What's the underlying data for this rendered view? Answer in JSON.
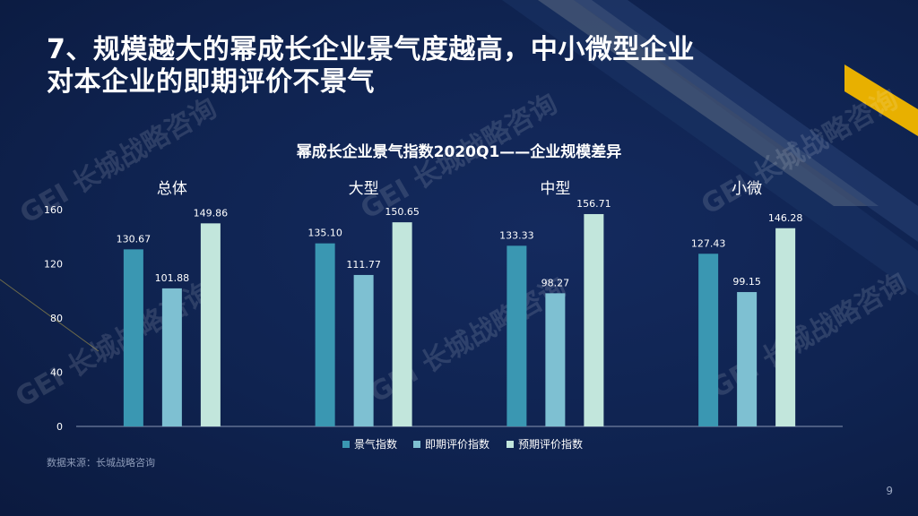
{
  "slide": {
    "headline_line1": "7、规模越大的幂成长企业景气度越高，中小微型企业",
    "headline_line2": "对本企业的即期评价不景气",
    "source": "数据来源：长城战略咨询",
    "page_number": "9",
    "watermark": "GEI 长城战略咨询",
    "colors": {
      "background": "#0f2350",
      "accent_gold": "#e8b000"
    }
  },
  "chart_data": {
    "type": "bar",
    "title": "幂成长企业景气指数2020Q1——企业规模差异",
    "categories": [
      "总体",
      "大型",
      "中型",
      "小微"
    ],
    "series": [
      {
        "name": "景气指数",
        "values": [
          130.67,
          135.1,
          133.33,
          127.43
        ],
        "color": "#3a97b2"
      },
      {
        "name": "即期评价指数",
        "values": [
          101.88,
          111.77,
          98.27,
          99.15
        ],
        "color": "#7ec0d2"
      },
      {
        "name": "预期评价指数",
        "values": [
          149.86,
          150.65,
          156.71,
          146.28
        ],
        "color": "#c2e6dc"
      }
    ],
    "value_labels": [
      [
        "130.67",
        "135.10",
        "133.33",
        "127.43"
      ],
      [
        "101.88",
        "111.77",
        "98.27",
        "99.15"
      ],
      [
        "149.86",
        "150.65",
        "156.71",
        "146.28"
      ]
    ],
    "yticks": [
      "0",
      "40",
      "80",
      "120",
      "160"
    ],
    "ylim": [
      0,
      160
    ],
    "grid": false,
    "legend_position": "bottom"
  }
}
